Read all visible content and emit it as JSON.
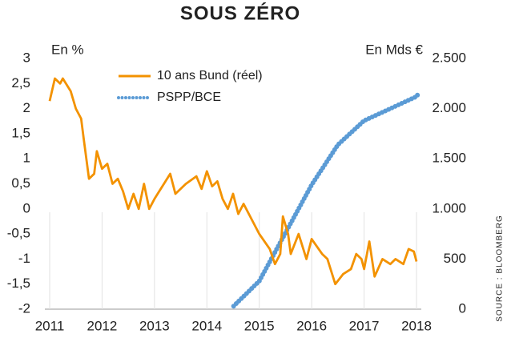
{
  "chart_data": {
    "type": "line",
    "title": "SOUS ZÉRO",
    "y_label": "En %",
    "y2_label": "En Mds €",
    "source": "SOURCE : BLOOMBERG",
    "xlim": [
      2011,
      2018.1
    ],
    "xticks": [
      2011,
      2012,
      2013,
      2014,
      2015,
      2016,
      2017,
      2018
    ],
    "ylim": [
      -2,
      3
    ],
    "yticks": [
      3,
      {
        "value": 2.5,
        "label": "2,5"
      },
      2,
      {
        "value": 1.5,
        "label": "1,5"
      },
      1,
      {
        "value": 0.5,
        "label": "0,5"
      },
      0,
      {
        "value": -0.5,
        "label": "-0,5"
      },
      -1,
      {
        "value": -1.5,
        "label": "-1,5"
      },
      -2
    ],
    "y2lim": [
      0,
      2500
    ],
    "y2ticks": [
      {
        "value": 2500,
        "label": "2.500"
      },
      {
        "value": 2000,
        "label": "2.000"
      },
      {
        "value": 1500,
        "label": "1.500"
      },
      {
        "value": 1000,
        "label": "1.000"
      },
      500,
      0
    ],
    "series": [
      {
        "name": "10 ans Bund (réel)",
        "color": "#f39200",
        "style": "solid",
        "x": [
          2011.0,
          2011.1,
          2011.2,
          2011.25,
          2011.4,
          2011.5,
          2011.6,
          2011.65,
          2011.7,
          2011.75,
          2011.85,
          2011.9,
          2012.0,
          2012.1,
          2012.2,
          2012.3,
          2012.4,
          2012.5,
          2012.6,
          2012.7,
          2012.8,
          2012.9,
          2013.0,
          2013.3,
          2013.4,
          2013.6,
          2013.8,
          2013.9,
          2014.0,
          2014.1,
          2014.2,
          2014.3,
          2014.4,
          2014.5,
          2014.6,
          2014.7,
          2014.9,
          2015.0,
          2015.2,
          2015.3,
          2015.4,
          2015.45,
          2015.55,
          2015.6,
          2015.75,
          2015.9,
          2016.0,
          2016.2,
          2016.3,
          2016.45,
          2016.6,
          2016.75,
          2016.85,
          2016.95,
          2017.0,
          2017.1,
          2017.2,
          2017.35,
          2017.5,
          2017.6,
          2017.75,
          2017.85,
          2017.95,
          2018.0
        ],
        "values": [
          2.15,
          2.6,
          2.5,
          2.6,
          2.35,
          2.0,
          1.8,
          1.4,
          1.0,
          0.6,
          0.7,
          1.15,
          0.8,
          0.9,
          0.5,
          0.6,
          0.35,
          0.0,
          0.3,
          0.0,
          0.5,
          0.0,
          0.2,
          0.7,
          0.3,
          0.5,
          0.65,
          0.4,
          0.75,
          0.45,
          0.55,
          0.2,
          0.0,
          0.3,
          -0.1,
          0.1,
          -0.3,
          -0.5,
          -0.8,
          -1.1,
          -0.9,
          -0.15,
          -0.5,
          -0.9,
          -0.5,
          -1.0,
          -0.6,
          -0.9,
          -1.0,
          -1.5,
          -1.3,
          -1.2,
          -0.9,
          -1.0,
          -1.2,
          -0.65,
          -1.35,
          -1.0,
          -1.1,
          -1.0,
          -1.1,
          -0.8,
          -0.85,
          -1.05
        ]
      },
      {
        "name": "PSPP/BCE",
        "color": "#5b9bd5",
        "style": "dotted",
        "axis": "y2",
        "x": [
          2014.51,
          2015.0,
          2015.5,
          2016.0,
          2016.5,
          2017.0,
          2017.5,
          2018.0,
          2018.03
        ],
        "values": [
          30,
          280,
          760,
          1240,
          1640,
          1880,
          2000,
          2120,
          2145
        ]
      }
    ]
  }
}
